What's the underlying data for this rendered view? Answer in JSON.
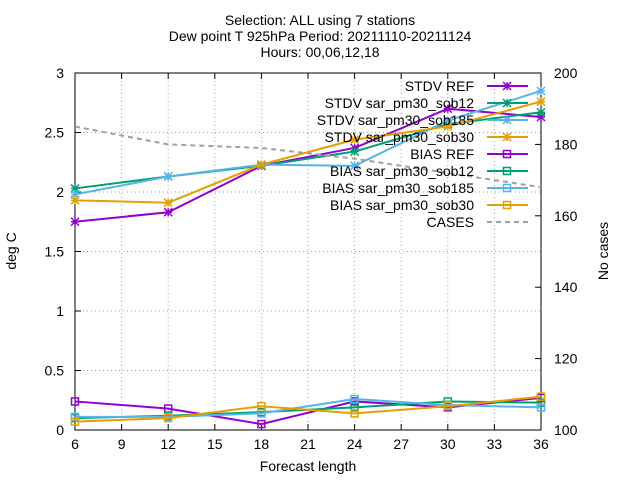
{
  "title_lines": [
    "Selection: ALL using     7 stations",
    "Dew point T 925hPa   Period: 20211110-20211124",
    "Hours: 00,06,12,18"
  ],
  "chart_data": {
    "type": "line",
    "title": "Selection: ALL using 7 stations / Dew point T 925hPa Period: 20211110-20211124 / Hours: 00,06,12,18",
    "xlabel": "Forecast length",
    "ylabel": "deg C",
    "y2label": "No cases",
    "x": [
      6,
      12,
      18,
      24,
      30,
      36
    ],
    "xlim": [
      6,
      36
    ],
    "xticks": [
      6,
      9,
      12,
      15,
      18,
      21,
      24,
      27,
      30,
      33,
      36
    ],
    "ylim": [
      0,
      3
    ],
    "yticks": [
      0,
      0.5,
      1,
      1.5,
      2,
      2.5,
      3
    ],
    "y2lim": [
      100,
      200
    ],
    "y2ticks": [
      100,
      120,
      140,
      160,
      180,
      200
    ],
    "grid": true,
    "legend_position": "top-right",
    "series": [
      {
        "name": "STDV REF",
        "axis": "y",
        "color": "#9400d3",
        "marker": "star",
        "dash": false,
        "values": [
          1.75,
          1.83,
          2.22,
          2.37,
          2.7,
          2.63
        ]
      },
      {
        "name": "STDV sar_pm30_sob12",
        "axis": "y",
        "color": "#009e73",
        "marker": "star",
        "dash": false,
        "values": [
          2.03,
          2.13,
          2.22,
          2.34,
          2.57,
          2.67
        ]
      },
      {
        "name": "STDV sar_pm30_sob185",
        "axis": "y",
        "color": "#56b4e9",
        "marker": "star",
        "dash": false,
        "values": [
          1.98,
          2.13,
          2.23,
          2.22,
          2.6,
          2.85
        ]
      },
      {
        "name": "STDV sar_pm30_sob30",
        "axis": "y",
        "color": "#e69f00",
        "marker": "star",
        "dash": false,
        "values": [
          1.93,
          1.91,
          2.23,
          2.44,
          2.55,
          2.76
        ]
      },
      {
        "name": "BIAS REF",
        "axis": "y",
        "color": "#9400d3",
        "marker": "square",
        "dash": false,
        "values": [
          0.24,
          0.18,
          0.05,
          0.24,
          0.19,
          0.27
        ]
      },
      {
        "name": "BIAS sar_pm30_sob12",
        "axis": "y",
        "color": "#009e73",
        "marker": "square",
        "dash": false,
        "values": [
          0.1,
          0.12,
          0.15,
          0.19,
          0.24,
          0.23
        ]
      },
      {
        "name": "BIAS sar_pm30_sob185",
        "axis": "y",
        "color": "#56b4e9",
        "marker": "square",
        "dash": false,
        "values": [
          0.11,
          0.11,
          0.14,
          0.26,
          0.21,
          0.19
        ]
      },
      {
        "name": "BIAS sar_pm30_sob30",
        "axis": "y",
        "color": "#e69f00",
        "marker": "square",
        "dash": false,
        "values": [
          0.07,
          0.1,
          0.2,
          0.14,
          0.2,
          0.28
        ]
      },
      {
        "name": "CASES",
        "axis": "y2",
        "color": "#a0a0a0",
        "marker": "none",
        "dash": true,
        "values": [
          185,
          180,
          179,
          176,
          172,
          168
        ]
      }
    ]
  }
}
